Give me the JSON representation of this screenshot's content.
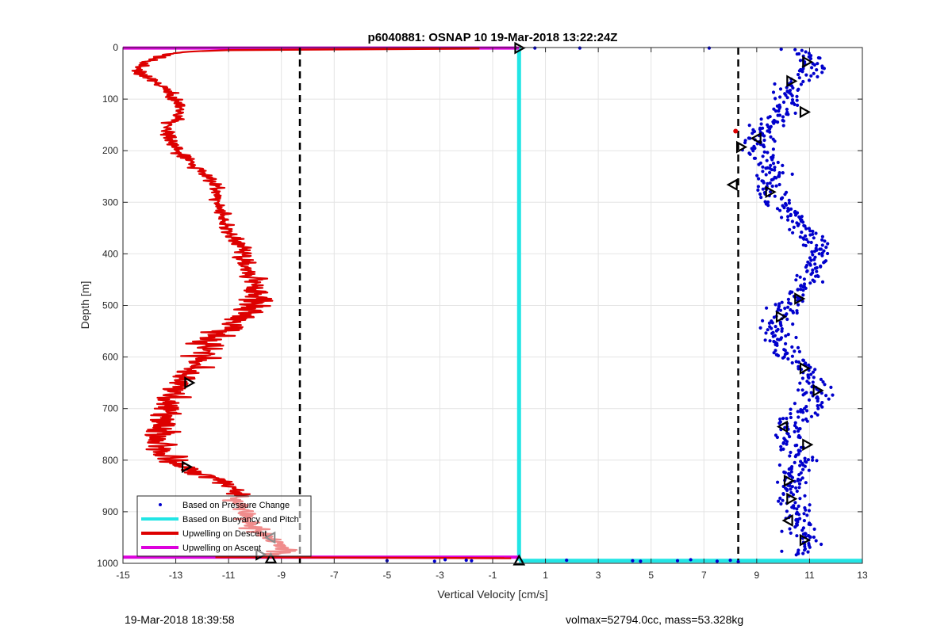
{
  "chart_data": {
    "type": "scatter",
    "title": "p6040881: OSNAP 10 19-Mar-2018 13:22:24Z",
    "xlabel": "Vertical Velocity [cm/s]",
    "ylabel": "Depth [m]",
    "xlim": [
      -15,
      13
    ],
    "ylim": [
      0,
      1000
    ],
    "y_reversed": true,
    "grid": true,
    "x_ticks": [
      -15,
      -13,
      -11,
      -9,
      -7,
      -5,
      -3,
      -1,
      1,
      3,
      5,
      7,
      9,
      11,
      13
    ],
    "y_ticks": [
      0,
      100,
      200,
      300,
      400,
      500,
      600,
      700,
      800,
      900,
      1000
    ],
    "x_tick_labels": [
      "-15",
      "-13",
      "-11",
      "-9",
      "-7",
      "-5",
      "-3",
      "-1",
      "1",
      "3",
      "5",
      "7",
      "9",
      "11",
      "13"
    ],
    "y_tick_labels": [
      "0",
      "100",
      "200",
      "300",
      "400",
      "500",
      "600",
      "700",
      "800",
      "900",
      "1000"
    ],
    "legend_position": "bottom-left",
    "series": [
      {
        "name": "Based on Pressure Change",
        "style": "dots",
        "color": "#0000cc",
        "profile": {
          "depth": [
            0,
            10,
            25,
            40,
            60,
            80,
            100,
            120,
            140,
            160,
            180,
            200,
            220,
            250,
            270,
            290,
            320,
            350,
            380,
            400,
            420,
            450,
            480,
            500,
            520,
            540,
            560,
            580,
            600,
            620,
            650,
            680,
            700,
            730,
            760,
            780,
            800,
            830,
            860,
            880,
            900,
            920,
            940,
            960,
            975,
            990
          ],
          "x": [
            9.3,
            10.8,
            11.2,
            11.0,
            10.6,
            10.4,
            10.2,
            10.0,
            9.8,
            9.1,
            9.3,
            9.0,
            9.4,
            9.6,
            9.5,
            9.8,
            10.3,
            10.8,
            11.3,
            11.5,
            11.2,
            11.0,
            10.5,
            10.1,
            9.9,
            9.7,
            9.8,
            9.9,
            10.2,
            10.8,
            11.2,
            11.2,
            11.0,
            10.4,
            10.0,
            10.4,
            10.6,
            10.4,
            10.2,
            10.4,
            10.6,
            10.4,
            10.6,
            10.8,
            10.7,
            10.4
          ],
          "spread": 0.55
        },
        "outliers": [
          {
            "x": 0.6,
            "y": 1
          },
          {
            "x": 2.3,
            "y": 1
          },
          {
            "x": 7.2,
            "y": 1
          },
          {
            "x": -1.8,
            "y": 995
          },
          {
            "x": -2.8,
            "y": 993
          },
          {
            "x": -3.2,
            "y": 996
          },
          {
            "x": -2.0,
            "y": 994
          },
          {
            "x": 1.8,
            "y": 994
          },
          {
            "x": 4.6,
            "y": 996
          },
          {
            "x": 6.0,
            "y": 995
          },
          {
            "x": 7.5,
            "y": 996
          },
          {
            "x": 8.0,
            "y": 994
          },
          {
            "x": -5.0,
            "y": 995
          },
          {
            "x": 4.3,
            "y": 995
          },
          {
            "x": 6.5,
            "y": 993
          },
          {
            "x": 8.3,
            "y": 997
          }
        ],
        "markers": [
          {
            "x": 10.9,
            "y": 28,
            "dir": "right"
          },
          {
            "x": 10.3,
            "y": 65,
            "dir": "right"
          },
          {
            "x": 10.8,
            "y": 125,
            "dir": "right"
          },
          {
            "x": 9.0,
            "y": 176,
            "dir": "left"
          },
          {
            "x": 8.4,
            "y": 193,
            "dir": "right"
          },
          {
            "x": 8.1,
            "y": 266,
            "dir": "left"
          },
          {
            "x": 9.5,
            "y": 280,
            "dir": "right"
          },
          {
            "x": 10.6,
            "y": 487,
            "dir": "right"
          },
          {
            "x": 9.9,
            "y": 522,
            "dir": "right"
          },
          {
            "x": 10.8,
            "y": 622,
            "dir": "right"
          },
          {
            "x": 11.3,
            "y": 665,
            "dir": "right"
          },
          {
            "x": 10.0,
            "y": 735,
            "dir": "left"
          },
          {
            "x": 10.9,
            "y": 770,
            "dir": "right"
          },
          {
            "x": 10.2,
            "y": 840,
            "dir": "right"
          },
          {
            "x": 10.3,
            "y": 875,
            "dir": "right"
          },
          {
            "x": 10.2,
            "y": 917,
            "dir": "left"
          },
          {
            "x": 10.8,
            "y": 955,
            "dir": "right"
          }
        ]
      },
      {
        "name": "Based on Buoyancy and Pitch",
        "style": "line",
        "color": "#22e5e5",
        "segments": [
          {
            "x": [
              0,
              0
            ],
            "y": [
              0,
              995
            ]
          },
          {
            "x": [
              0,
              13
            ],
            "y": [
              995,
              995
            ]
          }
        ]
      },
      {
        "name": "Upwelling on Descent",
        "style": "noisy-line",
        "color": "#dd0000",
        "profile": {
          "depth": [
            5,
            8,
            12,
            20,
            30,
            45,
            60,
            80,
            100,
            120,
            140,
            160,
            180,
            200,
            220,
            240,
            260,
            280,
            300,
            330,
            360,
            380,
            400,
            420,
            440,
            460,
            480,
            500,
            520,
            540,
            560,
            580,
            600,
            620,
            640,
            660,
            680,
            700,
            720,
            740,
            760,
            780,
            800,
            820,
            840,
            860,
            880,
            900,
            920,
            940,
            960,
            975,
            985
          ],
          "x": [
            -11.0,
            -12.5,
            -13.3,
            -13.8,
            -14.2,
            -14.4,
            -14.0,
            -13.4,
            -13.0,
            -12.8,
            -13.0,
            -13.5,
            -13.2,
            -12.9,
            -12.5,
            -12.0,
            -11.6,
            -11.4,
            -11.4,
            -11.2,
            -11.0,
            -10.6,
            -10.4,
            -10.4,
            -10.2,
            -10.0,
            -9.9,
            -10.0,
            -10.3,
            -11.0,
            -11.5,
            -11.8,
            -12.0,
            -12.3,
            -12.6,
            -13.0,
            -13.2,
            -13.3,
            -13.5,
            -13.6,
            -13.7,
            -13.5,
            -13.2,
            -12.5,
            -11.2,
            -10.8,
            -10.6,
            -10.5,
            -10.2,
            -9.8,
            -9.2,
            -8.8,
            -9.5
          ],
          "spread": [
            0.15,
            0.25,
            0.3,
            0.3,
            0.3,
            0.3,
            0.3,
            0.35,
            0.3,
            0.3,
            0.3,
            0.3,
            0.3,
            0.3,
            0.3,
            0.3,
            0.3,
            0.3,
            0.3,
            0.3,
            0.35,
            0.35,
            0.35,
            0.4,
            0.45,
            0.5,
            0.6,
            0.7,
            0.8,
            0.8,
            0.8,
            0.8,
            0.75,
            0.75,
            0.7,
            0.7,
            0.7,
            0.7,
            0.7,
            0.7,
            0.7,
            0.7,
            0.7,
            0.6,
            0.5,
            0.5,
            0.5,
            0.5,
            0.5,
            0.55,
            0.6,
            0.6,
            0.4
          ]
        },
        "spikes": [
          {
            "x1": -11.0,
            "y1": 5,
            "x2": -1.5,
            "y2": 2
          },
          {
            "x1": -11.5,
            "y1": 988,
            "x2": -0.3,
            "y2": 990
          }
        ],
        "markers": [
          {
            "x": -12.5,
            "y": 650,
            "dir": "right"
          },
          {
            "x": -12.6,
            "y": 813,
            "dir": "right"
          },
          {
            "x": -9.4,
            "y": 950,
            "dir": "left"
          },
          {
            "x": -9.8,
            "y": 983,
            "dir": "right"
          },
          {
            "x": -9.4,
            "y": 991,
            "dir": "up"
          }
        ]
      },
      {
        "name": "Upwelling on Ascent",
        "style": "line",
        "color": "#dd00dd",
        "segments": [
          {
            "x": [
              -15,
              0
            ],
            "y": [
              1,
              1
            ]
          },
          {
            "x": [
              -15,
              0
            ],
            "y": [
              988,
              988
            ]
          }
        ]
      }
    ],
    "reference_lines": [
      {
        "x": -8.3,
        "style": "dashed",
        "color": "#000000"
      },
      {
        "x": 8.3,
        "style": "dashed",
        "color": "#000000"
      }
    ],
    "endpoint_markers": [
      {
        "x": 0,
        "y": 1,
        "dir": "right"
      },
      {
        "x": 0,
        "y": 995,
        "dir": "up"
      }
    ]
  },
  "footer": {
    "left": "19-Mar-2018 18:39:58",
    "right": "volmax=52794.0cc, mass=53.328kg"
  }
}
